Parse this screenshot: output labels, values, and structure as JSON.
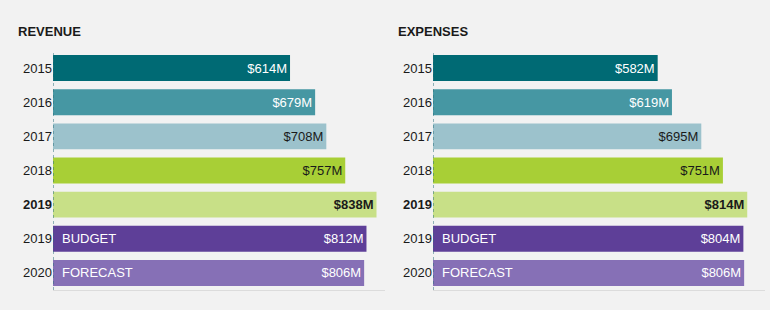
{
  "chart_data": [
    {
      "type": "bar",
      "title": "REVENUE",
      "orientation": "horizontal",
      "categories": [
        "2015",
        "2016",
        "2017",
        "2018",
        "2019",
        "2019",
        "2020"
      ],
      "values": [
        614,
        679,
        708,
        757,
        838,
        812,
        806
      ],
      "value_labels": [
        "$614M",
        "$679M",
        "$708M",
        "$757M",
        "$838M",
        "$812M",
        "$806M"
      ],
      "annotations": [
        null,
        null,
        null,
        null,
        null,
        "BUDGET",
        "FORECAST"
      ],
      "colors": [
        "#006a74",
        "#4697a3",
        "#9cc2cc",
        "#a8cf36",
        "#c8e087",
        "#5e3f98",
        "#8670b6"
      ],
      "xlim": [
        0,
        860
      ],
      "data_labels": true,
      "tick_labels": "y",
      "grid": false
    },
    {
      "type": "bar",
      "title": "EXPENSES",
      "orientation": "horizontal",
      "categories": [
        "2015",
        "2016",
        "2017",
        "2018",
        "2019",
        "2019",
        "2020"
      ],
      "values": [
        582,
        619,
        695,
        751,
        814,
        804,
        806
      ],
      "value_labels": [
        "$582M",
        "$619M",
        "$695M",
        "$751M",
        "$814M",
        "$804M",
        "$806M"
      ],
      "annotations": [
        null,
        null,
        null,
        null,
        null,
        "BUDGET",
        "FORECAST"
      ],
      "colors": [
        "#006a74",
        "#4697a3",
        "#9cc2cc",
        "#a8cf36",
        "#c8e087",
        "#5e3f98",
        "#8670b6"
      ],
      "xlim": [
        0,
        860
      ],
      "data_labels": true,
      "tick_labels": "y",
      "grid": false
    }
  ]
}
